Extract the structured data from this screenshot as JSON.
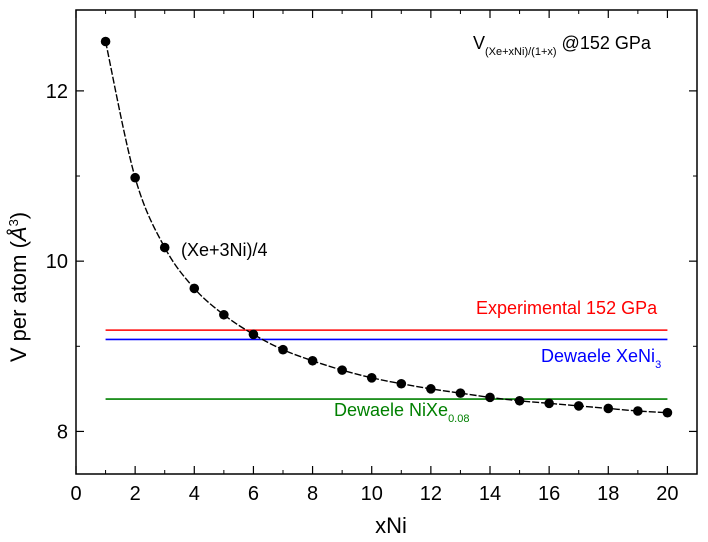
{
  "chart_data": {
    "type": "line",
    "xlabel": "xNi",
    "ylabel_main": "V per atom (",
    "ylabel_unit": "Å",
    "ylabel_sup": "3",
    "ylabel_close": ")",
    "xlim": [
      0,
      21
    ],
    "ylim": [
      7.5,
      12.95
    ],
    "xticks": [
      0,
      2,
      4,
      6,
      8,
      10,
      12,
      14,
      16,
      18,
      20
    ],
    "yticks": [
      8,
      10,
      12
    ],
    "grid": false,
    "series": [
      {
        "x": [
          1,
          2,
          3,
          4,
          5,
          6,
          7,
          8,
          9,
          10,
          11,
          12,
          13,
          14,
          15,
          16,
          17,
          18,
          19,
          20
        ],
        "values": [
          12.58,
          10.98,
          10.16,
          9.68,
          9.37,
          9.14,
          8.96,
          8.83,
          8.72,
          8.63,
          8.56,
          8.5,
          8.45,
          8.4,
          8.36,
          8.33,
          8.3,
          8.27,
          8.24,
          8.22
        ],
        "color": "#000000"
      }
    ],
    "reference_lines": [
      {
        "y": 9.19,
        "color": "#ff0000",
        "label": "Experimental 152 GPa",
        "label_sub": ""
      },
      {
        "y": 9.08,
        "color": "#0000ff",
        "label": "Dewaele XeNi",
        "label_sub": "3"
      },
      {
        "y": 8.38,
        "color": "#008000",
        "label": "Dewaele NiXe",
        "label_sub": "0.08"
      }
    ],
    "annotations": {
      "point_label": "(Xe+3Ni)/4",
      "corner_prefix": "V",
      "corner_sub": "(Xe+xNi)/(1+x)",
      "corner_suffix": " @152 GPa"
    }
  }
}
